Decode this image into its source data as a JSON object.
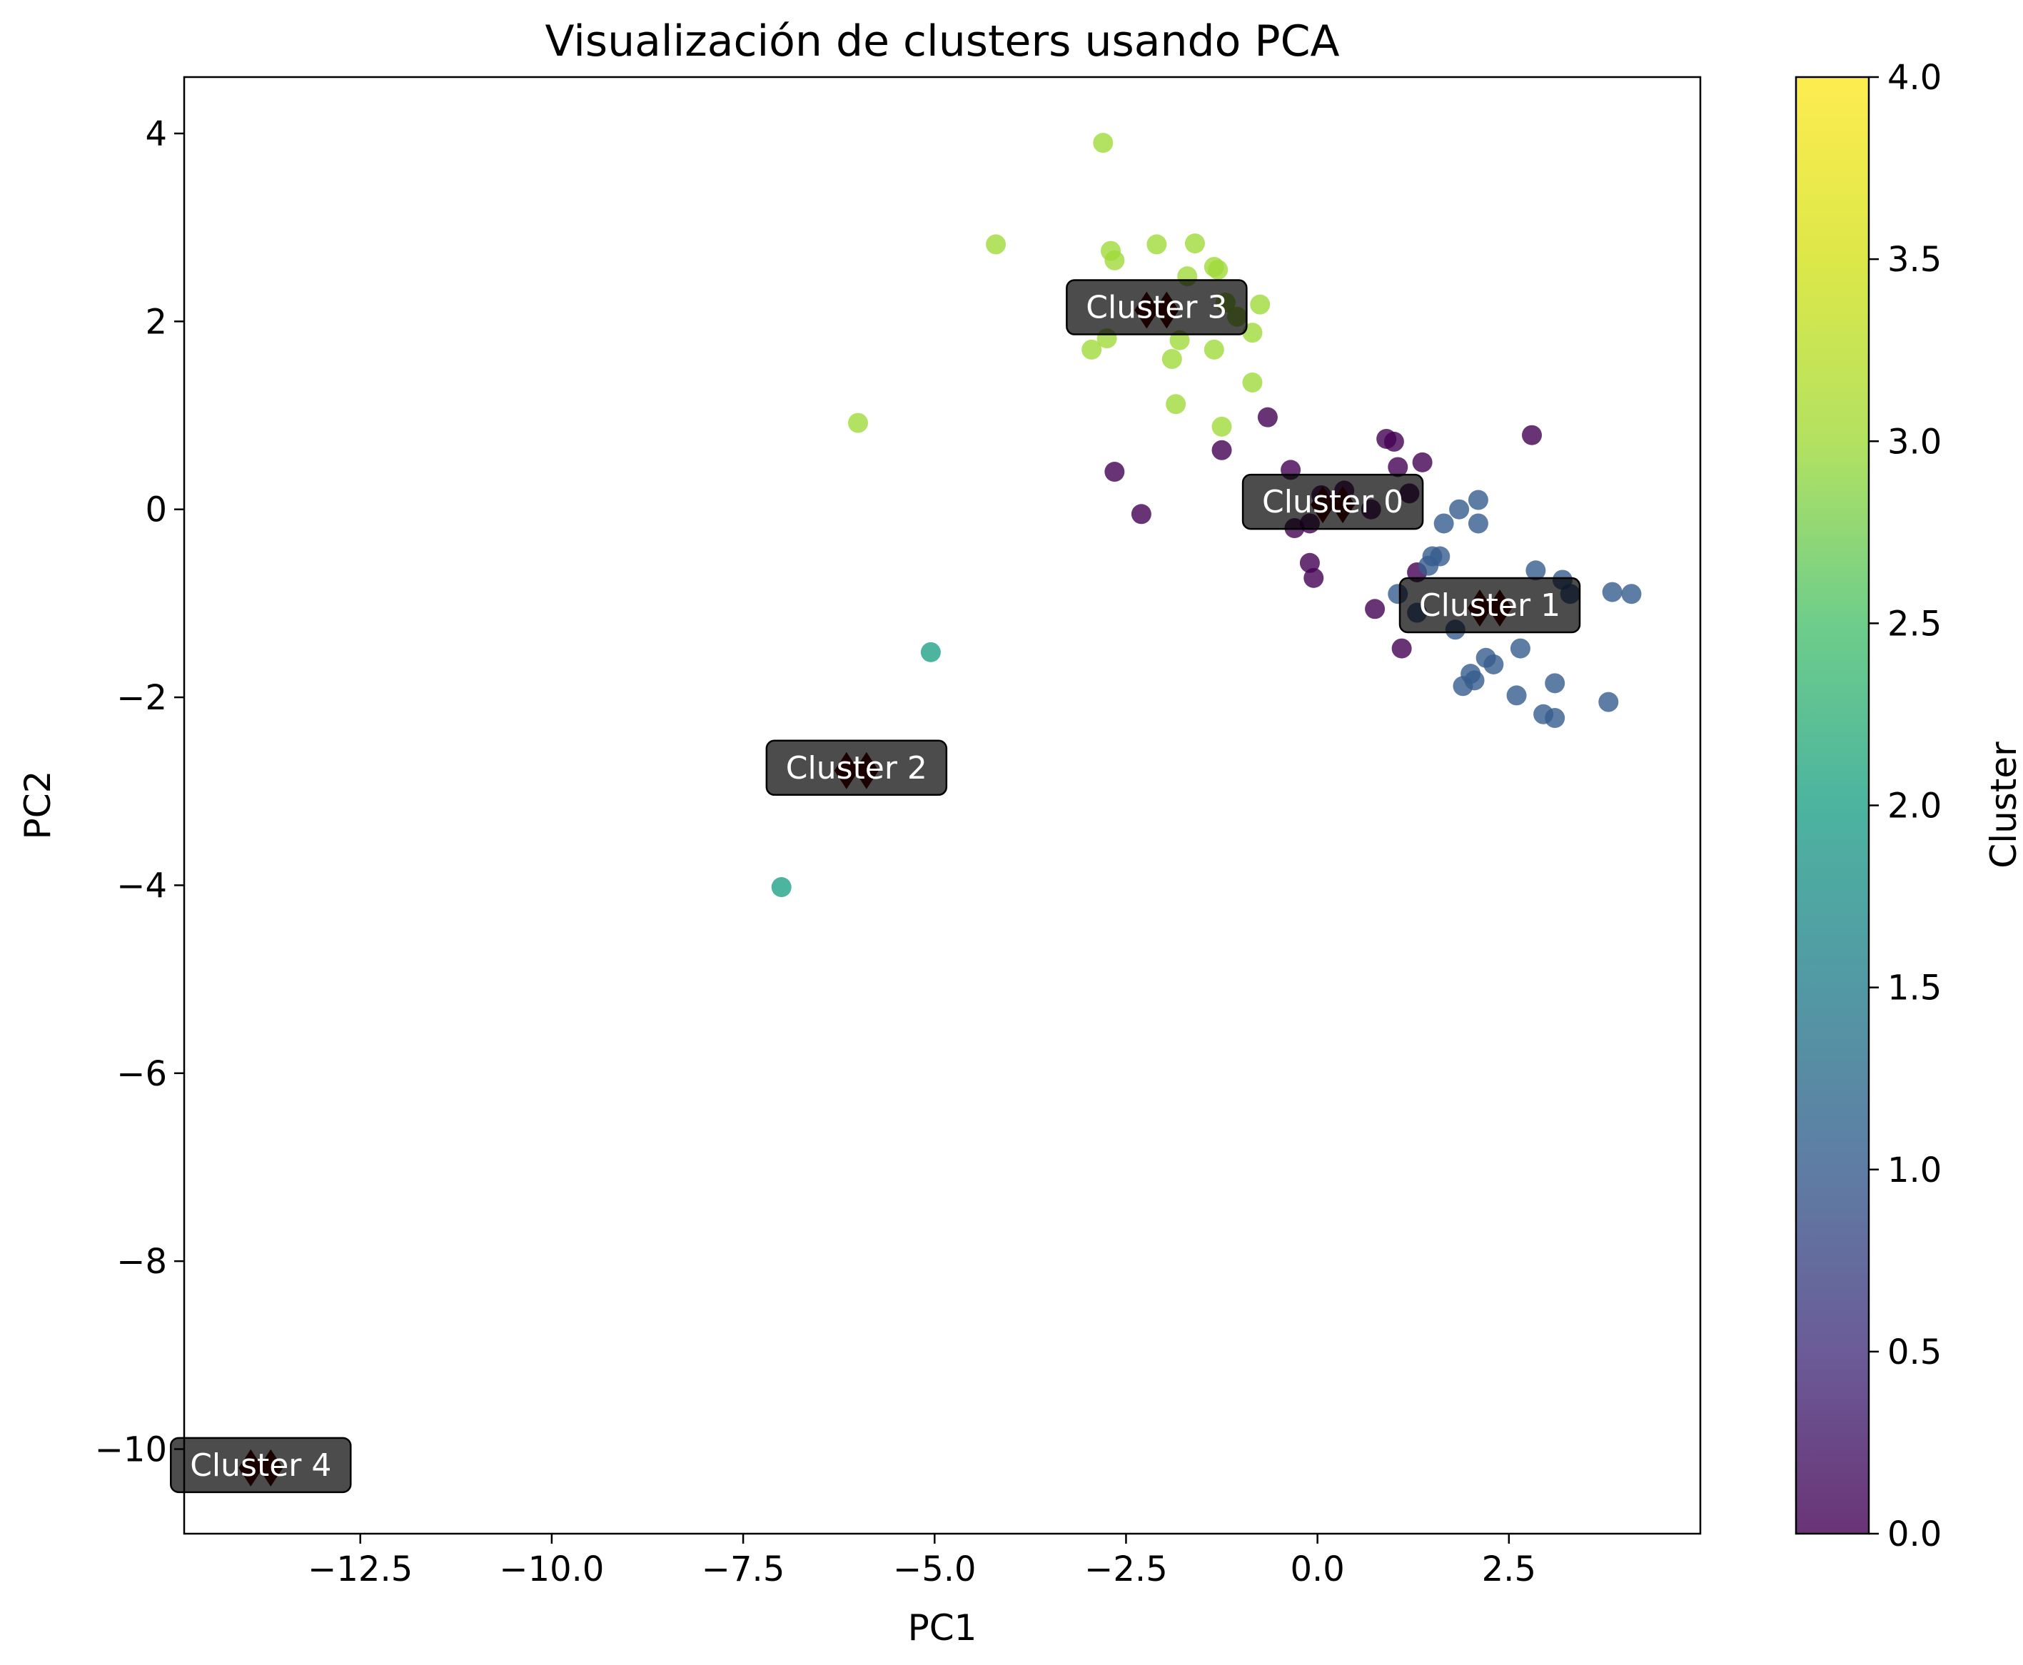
{
  "chart_data": {
    "type": "scatter",
    "title": "Visualización de clusters usando PCA",
    "xlabel": "PC1",
    "ylabel": "PC2",
    "xlim": [
      -14.8,
      5.0
    ],
    "ylim": [
      -10.9,
      4.6
    ],
    "grid": false,
    "x_ticks": [
      -12.5,
      -10.0,
      -7.5,
      -5.0,
      -2.5,
      0.0,
      2.5
    ],
    "x_tick_labels": [
      "−12.5",
      "−10.0",
      "−7.5",
      "−5.0",
      "−2.5",
      "0.0",
      "2.5"
    ],
    "y_ticks": [
      4,
      2,
      0,
      -2,
      -4,
      -6,
      -8,
      -10
    ],
    "y_tick_labels": [
      "4",
      "2",
      "0",
      "−2",
      "−4",
      "−6",
      "−8",
      "−10"
    ],
    "colorbar": {
      "label": "Cluster",
      "range": [
        0.0,
        4.0
      ],
      "ticks": [
        0.0,
        0.5,
        1.0,
        1.5,
        2.0,
        2.5,
        3.0,
        3.5,
        4.0
      ],
      "tick_labels": [
        "0.0",
        "0.5",
        "1.0",
        "1.5",
        "2.0",
        "2.5",
        "3.0",
        "3.5",
        "4.0"
      ],
      "colormap": "viridis"
    },
    "points": [
      {
        "x": -0.65,
        "y": 0.98,
        "cluster": 0
      },
      {
        "x": 0.9,
        "y": 0.75,
        "cluster": 0
      },
      {
        "x": 1.0,
        "y": 0.72,
        "cluster": 0
      },
      {
        "x": 1.05,
        "y": 0.45,
        "cluster": 0
      },
      {
        "x": 1.37,
        "y": 0.5,
        "cluster": 0
      },
      {
        "x": 2.8,
        "y": 0.79,
        "cluster": 0
      },
      {
        "x": -1.25,
        "y": 0.63,
        "cluster": 0
      },
      {
        "x": -2.65,
        "y": 0.4,
        "cluster": 0
      },
      {
        "x": -2.3,
        "y": -0.05,
        "cluster": 0
      },
      {
        "x": -0.35,
        "y": 0.42,
        "cluster": 0
      },
      {
        "x": -0.3,
        "y": -0.2,
        "cluster": 0
      },
      {
        "x": -0.1,
        "y": -0.15,
        "cluster": 0
      },
      {
        "x": 0.05,
        "y": 0.15,
        "cluster": 0
      },
      {
        "x": 0.35,
        "y": 0.2,
        "cluster": 0
      },
      {
        "x": 0.7,
        "y": 0.0,
        "cluster": 0
      },
      {
        "x": -0.1,
        "y": -0.57,
        "cluster": 0
      },
      {
        "x": -0.05,
        "y": -0.73,
        "cluster": 0
      },
      {
        "x": 1.2,
        "y": 0.17,
        "cluster": 0
      },
      {
        "x": 1.3,
        "y": -0.67,
        "cluster": 0
      },
      {
        "x": 0.75,
        "y": -1.06,
        "cluster": 0
      },
      {
        "x": 1.1,
        "y": -1.48,
        "cluster": 0
      },
      {
        "x": 1.85,
        "y": 0.0,
        "cluster": 1
      },
      {
        "x": 2.1,
        "y": 0.1,
        "cluster": 1
      },
      {
        "x": 1.65,
        "y": -0.15,
        "cluster": 1
      },
      {
        "x": 2.1,
        "y": -0.15,
        "cluster": 1
      },
      {
        "x": 1.5,
        "y": -0.5,
        "cluster": 1
      },
      {
        "x": 1.6,
        "y": -0.5,
        "cluster": 1
      },
      {
        "x": 1.45,
        "y": -0.6,
        "cluster": 1
      },
      {
        "x": 1.05,
        "y": -0.9,
        "cluster": 1
      },
      {
        "x": 1.3,
        "y": -1.1,
        "cluster": 1
      },
      {
        "x": 2.85,
        "y": -0.65,
        "cluster": 1
      },
      {
        "x": 3.2,
        "y": -0.75,
        "cluster": 1
      },
      {
        "x": 3.3,
        "y": -0.9,
        "cluster": 1
      },
      {
        "x": 3.85,
        "y": -0.88,
        "cluster": 1
      },
      {
        "x": 4.1,
        "y": -0.9,
        "cluster": 1
      },
      {
        "x": 1.8,
        "y": -1.28,
        "cluster": 1
      },
      {
        "x": 2.65,
        "y": -1.48,
        "cluster": 1
      },
      {
        "x": 2.2,
        "y": -1.58,
        "cluster": 1
      },
      {
        "x": 2.3,
        "y": -1.65,
        "cluster": 1
      },
      {
        "x": 2.0,
        "y": -1.75,
        "cluster": 1
      },
      {
        "x": 1.9,
        "y": -1.88,
        "cluster": 1
      },
      {
        "x": 2.05,
        "y": -1.82,
        "cluster": 1
      },
      {
        "x": 2.6,
        "y": -1.98,
        "cluster": 1
      },
      {
        "x": 3.1,
        "y": -1.85,
        "cluster": 1
      },
      {
        "x": 2.95,
        "y": -2.18,
        "cluster": 1
      },
      {
        "x": 3.1,
        "y": -2.22,
        "cluster": 1
      },
      {
        "x": 3.8,
        "y": -2.05,
        "cluster": 1
      },
      {
        "x": -5.05,
        "y": -1.52,
        "cluster": 2
      },
      {
        "x": -7.0,
        "y": -4.02,
        "cluster": 2
      },
      {
        "x": -2.8,
        "y": 3.9,
        "cluster": 3
      },
      {
        "x": -4.2,
        "y": 2.82,
        "cluster": 3
      },
      {
        "x": -2.7,
        "y": 2.75,
        "cluster": 3
      },
      {
        "x": -2.65,
        "y": 2.65,
        "cluster": 3
      },
      {
        "x": -2.1,
        "y": 2.82,
        "cluster": 3
      },
      {
        "x": -1.6,
        "y": 2.83,
        "cluster": 3
      },
      {
        "x": -1.35,
        "y": 2.58,
        "cluster": 3
      },
      {
        "x": -1.3,
        "y": 2.55,
        "cluster": 3
      },
      {
        "x": -1.7,
        "y": 2.48,
        "cluster": 3
      },
      {
        "x": -1.2,
        "y": 2.2,
        "cluster": 3
      },
      {
        "x": -0.75,
        "y": 2.18,
        "cluster": 3
      },
      {
        "x": -1.05,
        "y": 2.05,
        "cluster": 3
      },
      {
        "x": -0.85,
        "y": 1.88,
        "cluster": 3
      },
      {
        "x": -2.75,
        "y": 1.82,
        "cluster": 3
      },
      {
        "x": -1.8,
        "y": 1.8,
        "cluster": 3
      },
      {
        "x": -2.95,
        "y": 1.7,
        "cluster": 3
      },
      {
        "x": -1.35,
        "y": 1.7,
        "cluster": 3
      },
      {
        "x": -1.9,
        "y": 1.6,
        "cluster": 3
      },
      {
        "x": -0.85,
        "y": 1.35,
        "cluster": 3
      },
      {
        "x": -1.85,
        "y": 1.12,
        "cluster": 3
      },
      {
        "x": -1.25,
        "y": 0.88,
        "cluster": 3
      },
      {
        "x": -6.0,
        "y": 0.92,
        "cluster": 3
      }
    ],
    "centroids": [
      {
        "name": "Cluster 0",
        "x": 0.2,
        "y": 0.05
      },
      {
        "name": "Cluster 1",
        "x": 2.25,
        "y": -1.05
      },
      {
        "name": "Cluster 2",
        "x": -6.02,
        "y": -2.78
      },
      {
        "name": "Cluster 3",
        "x": -2.1,
        "y": 2.12
      },
      {
        "name": "Cluster 4",
        "x": -13.8,
        "y": -10.2
      }
    ]
  }
}
